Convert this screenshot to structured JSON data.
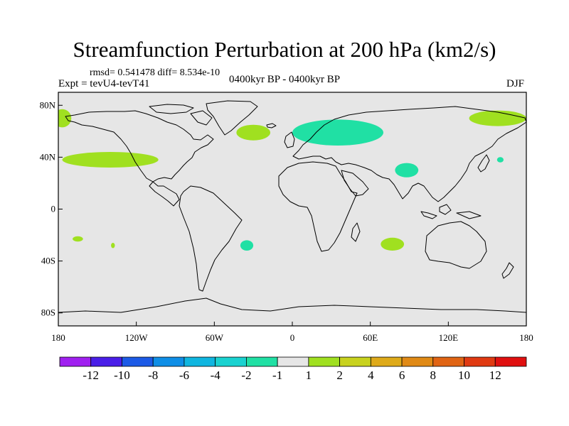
{
  "title": "Streamfunction Perturbation at 200 hPa (km2/s)",
  "stats": "rmsd= 0.541478 diff= 8.534e-10",
  "experiment": "Expt = tevU4-tevT41",
  "period": "0400kyr BP - 0400kyr BP",
  "season": "DJF",
  "map": {
    "background_color": "#e6e6e6",
    "coastline_color": "#000000",
    "lon_range": [
      -180,
      180
    ],
    "lat_range": [
      -90,
      90
    ]
  },
  "axes": {
    "lat_ticks": [
      {
        "value": 80,
        "label": "80N"
      },
      {
        "value": 40,
        "label": "40N"
      },
      {
        "value": 0,
        "label": "0"
      },
      {
        "value": -40,
        "label": "40S"
      },
      {
        "value": -80,
        "label": "80S"
      }
    ],
    "lon_ticks": [
      {
        "value": -180,
        "label": "180"
      },
      {
        "value": -120,
        "label": "120W"
      },
      {
        "value": -60,
        "label": "60W"
      },
      {
        "value": 0,
        "label": "0"
      },
      {
        "value": 60,
        "label": "60E"
      },
      {
        "value": 120,
        "label": "120E"
      },
      {
        "value": 180,
        "label": "180"
      }
    ]
  },
  "colorbar": {
    "levels": [
      "-12",
      "-10",
      "-8",
      "-6",
      "-4",
      "-2",
      "-1",
      "1",
      "2",
      "4",
      "6",
      "8",
      "10",
      "12"
    ],
    "colors": [
      "#a020f0",
      "#4a1ee8",
      "#1c5ae6",
      "#0f8ee6",
      "#10b6e0",
      "#1ad2d0",
      "#20e0a4",
      "#e6e6e6",
      "#a0e020",
      "#c8d21e",
      "#deaa1a",
      "#e08a16",
      "#e06414",
      "#e03a12",
      "#e01010"
    ]
  },
  "anomalies": [
    {
      "level": "2",
      "color": "#a0e020",
      "center": [
        -177,
        70
      ],
      "radius": [
        7,
        7
      ]
    },
    {
      "level": "2",
      "color": "#a0e020",
      "center": [
        -140,
        38
      ],
      "radius": [
        37,
        6
      ]
    },
    {
      "level": "2",
      "color": "#a0e020",
      "center": [
        -165,
        -23
      ],
      "radius": [
        4,
        2
      ]
    },
    {
      "level": "2",
      "color": "#a0e020",
      "center": [
        -138,
        -28
      ],
      "radius": [
        1.5,
        2
      ]
    },
    {
      "level": "2",
      "color": "#a0e020",
      "center": [
        -30,
        59
      ],
      "radius": [
        13,
        6
      ]
    },
    {
      "level": "2",
      "color": "#a0e020",
      "center": [
        158,
        70
      ],
      "radius": [
        22,
        6
      ]
    },
    {
      "level": "2",
      "color": "#a0e020",
      "center": [
        77,
        -27
      ],
      "radius": [
        9,
        5
      ]
    },
    {
      "level": "-1",
      "color": "#20e0a4",
      "center": [
        -35,
        -28
      ],
      "radius": [
        5,
        4
      ]
    },
    {
      "level": "-1",
      "color": "#20e0a4",
      "center": [
        35,
        59
      ],
      "radius": [
        35,
        10
      ]
    },
    {
      "level": "-1",
      "color": "#20e0a4",
      "center": [
        88,
        30
      ],
      "radius": [
        9,
        5.5
      ]
    },
    {
      "level": "-1",
      "color": "#20e0a4",
      "center": [
        160,
        38
      ],
      "radius": [
        2.5,
        2
      ]
    }
  ]
}
